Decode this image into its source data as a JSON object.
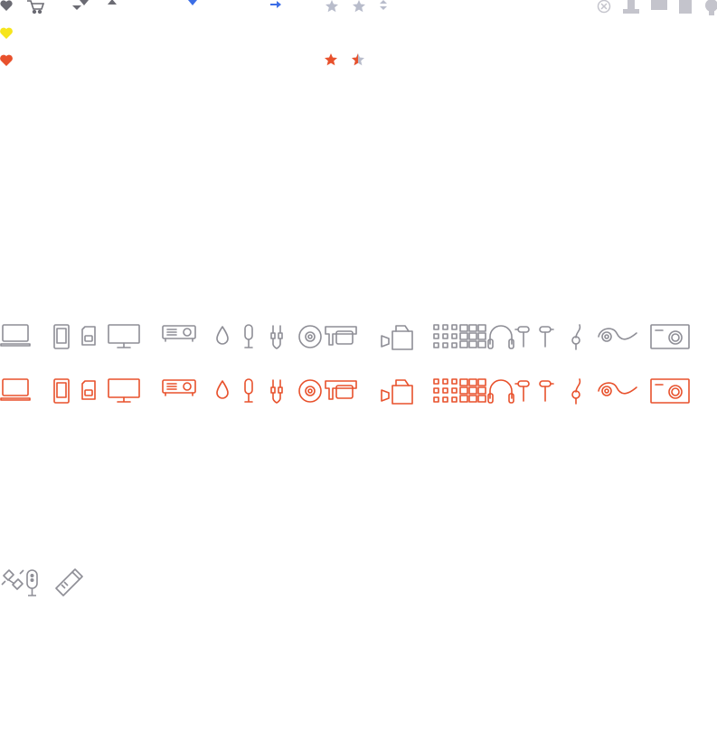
{
  "colors": {
    "gray": "#8e8e96",
    "dark_gray": "#6b6b73",
    "light_gray": "#c4c4cc",
    "pale_gray": "#dcdce2",
    "yellow": "#f6e51d",
    "orange_red": "#e8512c",
    "blue": "#3c6ee6",
    "star_gray": "#b8bccb"
  },
  "rows": {
    "top_ui": [
      "heart-icon",
      "cart-icon",
      "expand-arrows-icon",
      "up-triangle-icon",
      "blue-diamond-icon",
      "blue-arrow-right-icon",
      "star-icon",
      "star-icon",
      "sort-arrows-icon",
      "close-circle-icon",
      "stamp-icon",
      "rect-icon",
      "page-icon",
      "pin-icon"
    ],
    "hearts": [
      "yellow-heart-icon",
      "red-heart-icon"
    ],
    "ratings": [
      "star-filled-icon",
      "star-half-icon"
    ],
    "devices": [
      "laptop-icon",
      "tablet-icon",
      "sd-card-icon",
      "monitor-icon",
      "projector-icon",
      "drop-icon",
      "microphone-icon",
      "audio-cable-icon",
      "disc-icon",
      "camcorder-icon",
      "video-camera-icon",
      "dot-grid-icon",
      "mixer-pads-icon",
      "headphones-icon",
      "earphones-icon",
      "earbud-icon",
      "ear-hook-icon",
      "wave-icon",
      "camera-icon"
    ],
    "misc": [
      "satellite-icon",
      "remote-icon",
      "usb-stick-icon"
    ]
  }
}
